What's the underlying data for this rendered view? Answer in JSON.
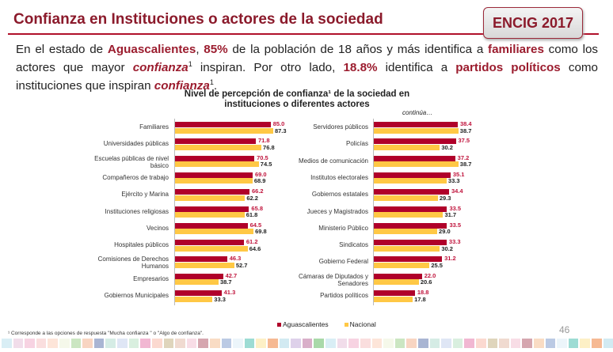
{
  "header": {
    "title": "Confianza en Instituciones o actores de la sociedad",
    "badge": "ENCIG 2017"
  },
  "paragraph": [
    {
      "t": "En el estado de ",
      "s": ""
    },
    {
      "t": "Aguascalientes",
      "s": "b"
    },
    {
      "t": ", ",
      "s": ""
    },
    {
      "t": "85%",
      "s": "b"
    },
    {
      "t": " de la población de 18 años y más identifica a ",
      "s": ""
    },
    {
      "t": "familiares",
      "s": "b"
    },
    {
      "t": " como los actores que mayor ",
      "s": ""
    },
    {
      "t": "confianza",
      "s": "bi"
    },
    {
      "t": "1",
      "s": "sup"
    },
    {
      "t": " inspiran. Por otro lado, ",
      "s": ""
    },
    {
      "t": "18.8%",
      "s": "b"
    },
    {
      "t": " identifica a ",
      "s": ""
    },
    {
      "t": "partidos políticos",
      "s": "b"
    },
    {
      "t": " como instituciones que inspiran ",
      "s": ""
    },
    {
      "t": "confianza",
      "s": "bi"
    },
    {
      "t": "1",
      "s": "sup"
    },
    {
      "t": ".",
      "s": ""
    }
  ],
  "chart_title_line1": "Nivel de percepción de confianza¹ de la sociedad en",
  "chart_title_line2": "instituciones o diferentes actores",
  "continued": "continúa…",
  "chart_data": [
    {
      "type": "bar",
      "orientation": "horizontal",
      "series_names": [
        "Aguascalientes",
        "Nacional"
      ],
      "categories": [
        "Familiares",
        "Universidades públicas",
        "Escuelas públicas de nivel básico",
        "Compañeros de trabajo",
        "Ejército y Marina",
        "Instituciones religiosas",
        "Vecinos",
        "Hospitales públicos",
        "Comisiones de Derechos Humanos",
        "Empresarios",
        "Gobiernos Municipales"
      ],
      "series": [
        {
          "name": "Aguascalientes",
          "values": [
            85.0,
            71.8,
            70.5,
            69.0,
            66.2,
            65.8,
            64.5,
            61.2,
            46.3,
            42.7,
            41.3
          ]
        },
        {
          "name": "Nacional",
          "values": [
            87.3,
            76.8,
            74.5,
            68.9,
            62.2,
            61.8,
            69.8,
            64.6,
            52.7,
            38.7,
            33.3
          ]
        }
      ]
    },
    {
      "type": "bar",
      "orientation": "horizontal",
      "categories": [
        "Servidores públicos",
        "Policías",
        "Medios de comunicación",
        "Institutos electorales",
        "Gobiernos estatales",
        "Jueces y Magistrados",
        "Ministerio Público",
        "Sindicatos",
        "Gobierno Federal",
        "Cámaras de Diputados y Senadores",
        "Partidos políticos"
      ],
      "series": [
        {
          "name": "Aguascalientes",
          "values": [
            38.4,
            37.5,
            37.2,
            35.1,
            34.4,
            33.5,
            33.5,
            33.3,
            31.2,
            22.0,
            18.8
          ]
        },
        {
          "name": "Nacional",
          "values": [
            38.7,
            30.2,
            38.7,
            33.3,
            29.3,
            31.7,
            29.0,
            30.2,
            25.5,
            20.6,
            17.8
          ]
        }
      ]
    }
  ],
  "colors": {
    "aguascalientes": "#b0002a",
    "nacional": "#ffc845",
    "accent": "#8b1a2b"
  },
  "legend": {
    "a": "Aguascalientes",
    "n": "Nacional"
  },
  "footnote": "¹ Corresponde a las opciones de respuesta \"Mucha confianza \" o \"Algo de confianza\".",
  "page_number": "46"
}
